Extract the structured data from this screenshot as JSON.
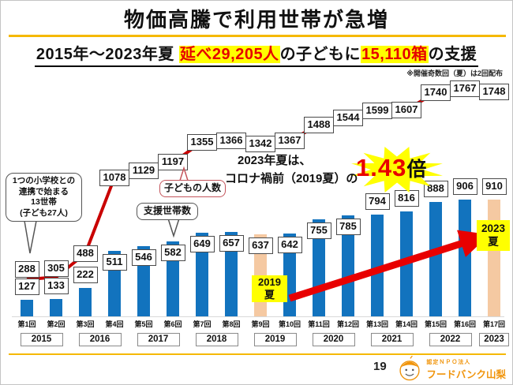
{
  "title": "物価高騰で利用世帯が急増",
  "subtitle": {
    "prefix": "2015年～2023年夏 ",
    "children_highlight": "延べ29,205人",
    "middle": "の子どもに",
    "boxes_highlight": "15,110箱",
    "suffix": "の支援"
  },
  "note": "※開催奇数回（夏）は2回配布",
  "chart_data": {
    "type": "combo",
    "categories": [
      "第1回",
      "第2回",
      "第3回",
      "第4回",
      "第5回",
      "第6回",
      "第7回",
      "第8回",
      "第9回",
      "第10回",
      "第11回",
      "第12回",
      "第13回",
      "第14回",
      "第15回",
      "第16回",
      "第17回"
    ],
    "series": [
      {
        "name": "支援世帯数",
        "type": "bar",
        "values": [
          127,
          133,
          222,
          511,
          546,
          582,
          649,
          657,
          637,
          642,
          755,
          785,
          794,
          816,
          888,
          906,
          910
        ],
        "color": "#1273BE",
        "highlight_color": "#F5C9A2",
        "highlight_indices": [
          8,
          16
        ]
      },
      {
        "name": "子どもの人数",
        "type": "line",
        "values": [
          288,
          305,
          488,
          1078,
          1129,
          1197,
          1355,
          1366,
          1342,
          1367,
          1488,
          1544,
          1599,
          1607,
          1740,
          1767,
          1748
        ],
        "color": "#C90000"
      }
    ],
    "year_groups": [
      {
        "label": "2015",
        "cols": 2
      },
      {
        "label": "2016",
        "cols": 2
      },
      {
        "label": "2017",
        "cols": 2
      },
      {
        "label": "2018",
        "cols": 2
      },
      {
        "label": "2019",
        "cols": 2
      },
      {
        "label": "2020",
        "cols": 2
      },
      {
        "label": "2021",
        "cols": 2
      },
      {
        "label": "2022",
        "cols": 2
      },
      {
        "label": "2023",
        "cols": 1
      }
    ],
    "grid": false,
    "legend_position": "none"
  },
  "annotations": {
    "start_callout": {
      "lines": [
        "1つの小学校との",
        "連携で始まる",
        "13世帯",
        "(子ども27人)"
      ]
    },
    "children_series_label": "子どもの人数",
    "households_series_label": "支援世帯数",
    "comparison": {
      "line1": "2023年夏は、",
      "line2": "コロナ禍前（2019夏）の",
      "value": "1.43",
      "unit": "倍"
    },
    "summer_2019": {
      "lines": [
        "2019",
        "夏"
      ]
    },
    "summer_2023": {
      "lines": [
        "2023",
        "夏"
      ]
    }
  },
  "footer": {
    "page_number": "19",
    "org_type": "認定ＮＰＯ法人",
    "org_name": "フードバンク山梨"
  },
  "colors": {
    "bar_blue": "#1273BE",
    "bar_peach": "#F5C9A2",
    "line_red": "#C90000",
    "arrow_red": "#E80000",
    "highlight_yellow": "#FFFF00",
    "divider_gold": "#F5B800",
    "accent_red": "#E60000",
    "logo_orange": "#F0940A"
  }
}
